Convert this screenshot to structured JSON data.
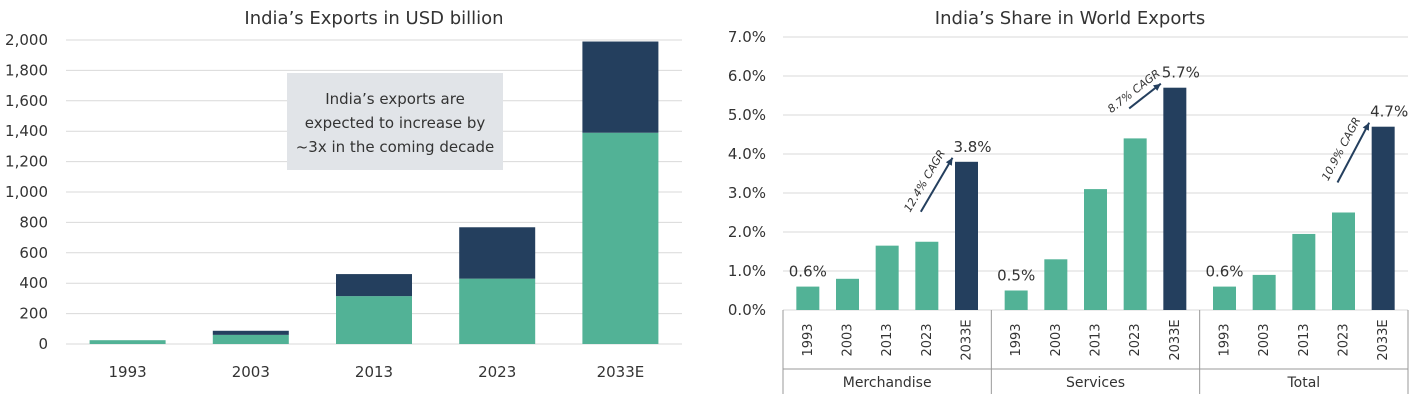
{
  "colors": {
    "teal": "#52b296",
    "navy": "#243f5e",
    "note_bg": "#e1e4e8"
  },
  "chart_data": [
    {
      "type": "bar",
      "stacked": true,
      "title": "India’s Exports in USD billion",
      "categories": [
        "1993",
        "2003",
        "2013",
        "2023",
        "2033E"
      ],
      "series": [
        {
          "values": [
            25,
            60,
            315,
            430,
            1390
          ],
          "color": "#52b296"
        },
        {
          "values": [
            0,
            27,
            145,
            338,
            600
          ],
          "color": "#243f5e"
        }
      ],
      "ylim": [
        0,
        2000
      ],
      "yticks": [
        "0",
        "200",
        "400",
        "600",
        "800",
        "1,000",
        "1,200",
        "1,400",
        "1,600",
        "1,800",
        "2,000"
      ],
      "grid": true,
      "annotation": [
        "India’s exports are",
        "expected to increase by",
        "~3x in the coming decade"
      ]
    },
    {
      "type": "bar",
      "title": "India’s Share in World Exports",
      "ylim": [
        0,
        7
      ],
      "yticks": [
        "0.0%",
        "1.0%",
        "2.0%",
        "3.0%",
        "4.0%",
        "5.0%",
        "6.0%",
        "7.0%"
      ],
      "grid": true,
      "groups": [
        {
          "name": "Merchandise",
          "categories": [
            "1993",
            "2003",
            "2013",
            "2023",
            "2033E"
          ],
          "values": [
            0.6,
            0.8,
            1.65,
            1.75,
            3.8
          ],
          "first_label": "0.6%",
          "last_label": "3.8%",
          "cagr": "12.4% CAGR"
        },
        {
          "name": "Services",
          "categories": [
            "1993",
            "2003",
            "2013",
            "2023",
            "2033E"
          ],
          "values": [
            0.5,
            1.3,
            3.1,
            4.4,
            5.7
          ],
          "first_label": "0.5%",
          "last_label": "5.7%",
          "cagr": "8.7% CAGR"
        },
        {
          "name": "Total",
          "categories": [
            "1993",
            "2003",
            "2013",
            "2023",
            "2033E"
          ],
          "values": [
            0.6,
            0.9,
            1.95,
            2.5,
            4.7
          ],
          "first_label": "0.6%",
          "last_label": "4.7%",
          "cagr": "10.9% CAGR"
        }
      ]
    }
  ]
}
